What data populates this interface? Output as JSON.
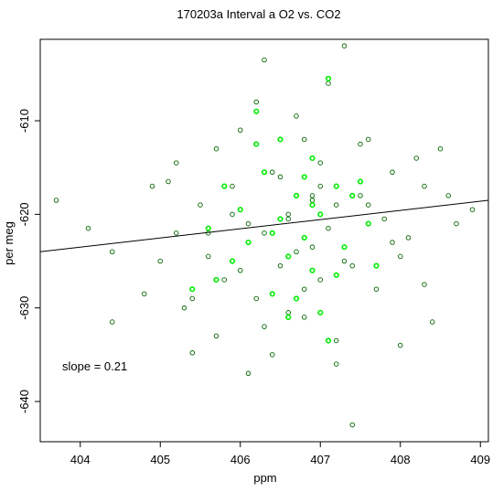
{
  "chart_data": {
    "type": "scatter",
    "title": "170203a   Interval a O2 vs. CO2",
    "xlabel": "ppm",
    "ylabel": "per meg",
    "xlim": [
      403.5,
      409.1
    ],
    "ylim": [
      -644.3,
      -601.3
    ],
    "xticks": [
      404,
      405,
      406,
      407,
      408,
      409
    ],
    "yticks": [
      -610,
      -620,
      -630,
      -640
    ],
    "annotation": "slope =  0.21",
    "fit": {
      "slope": 0.21,
      "x": [
        403.5,
        409.1
      ],
      "y": [
        -624.0,
        -618.5
      ]
    },
    "colors": {
      "dark": "#006400",
      "bright": "#00ee00",
      "line": "#000000"
    },
    "series": [
      {
        "color": "dark",
        "x": [
          403.7,
          404.1,
          404.4,
          404.4,
          404.8,
          404.9,
          405.0,
          405.1,
          405.2,
          405.2,
          405.4,
          405.4,
          405.5,
          405.6,
          405.7,
          405.8,
          405.9,
          406.0,
          406.1,
          406.2,
          406.2,
          406.3,
          406.3,
          406.4,
          406.5,
          406.5,
          406.6,
          406.6,
          406.7,
          406.7,
          406.8,
          406.8,
          406.9,
          406.9,
          407.0,
          407.0,
          407.1,
          407.1,
          407.2,
          407.2,
          407.3,
          407.3,
          407.4,
          407.5,
          407.6,
          407.7,
          407.8,
          407.9,
          408.0,
          408.1,
          408.2,
          408.3,
          408.4,
          408.5,
          408.6,
          408.7,
          408.9,
          405.3,
          405.6,
          405.9,
          406.0,
          406.4,
          406.8,
          407.0,
          407.4,
          407.6,
          407.9,
          408.3,
          406.3,
          406.6,
          407.2,
          405.7,
          406.1,
          406.9,
          407.5,
          408.0
        ],
        "y": [
          -618.5,
          -621.5,
          -631.5,
          -624.0,
          -628.5,
          -617.0,
          -625.0,
          -616.5,
          -622.0,
          -614.5,
          -629.0,
          -634.8,
          -619.0,
          -624.5,
          -613.0,
          -627.0,
          -620.0,
          -611.0,
          -637.0,
          -608.0,
          -629.0,
          -622.0,
          -632.0,
          -615.5,
          -616.0,
          -625.5,
          -620.0,
          -630.5,
          -609.5,
          -624.0,
          -628.0,
          -612.0,
          -618.5,
          -623.5,
          -617.0,
          -627.0,
          -621.5,
          -606.0,
          -633.5,
          -619.0,
          -602.0,
          -625.0,
          -642.5,
          -618.0,
          -612.0,
          -628.0,
          -620.5,
          -615.5,
          -634.0,
          -622.5,
          -614.0,
          -617.0,
          -631.5,
          -613.0,
          -618.0,
          -621.0,
          -619.5,
          -630.0,
          -622.0,
          -617.0,
          -626.0,
          -635.0,
          -631.0,
          -614.5,
          -625.5,
          -619.0,
          -623.0,
          -627.5,
          -603.5,
          -620.5,
          -636.0,
          -633.0,
          -621.0,
          -618.0,
          -612.5,
          -624.5
        ]
      },
      {
        "color": "bright",
        "x": [
          405.4,
          405.6,
          405.8,
          405.9,
          406.0,
          406.1,
          406.2,
          406.3,
          406.4,
          406.5,
          406.5,
          406.6,
          406.7,
          406.7,
          406.8,
          406.8,
          406.9,
          406.9,
          407.0,
          407.0,
          407.1,
          407.2,
          407.3,
          407.4,
          407.6,
          407.7,
          405.7,
          406.2,
          406.6,
          407.1,
          407.5,
          406.4,
          406.9,
          407.2
        ],
        "y": [
          -628.0,
          -621.5,
          -617.0,
          -625.0,
          -619.5,
          -623.0,
          -609.0,
          -615.5,
          -628.5,
          -620.5,
          -612.0,
          -624.5,
          -618.0,
          -629.0,
          -616.0,
          -622.5,
          -626.0,
          -614.0,
          -620.0,
          -630.5,
          -605.5,
          -617.0,
          -623.5,
          -618.0,
          -621.0,
          -625.5,
          -627.0,
          -612.5,
          -631.0,
          -633.5,
          -616.5,
          -622.0,
          -619.0,
          -626.5
        ]
      }
    ]
  }
}
